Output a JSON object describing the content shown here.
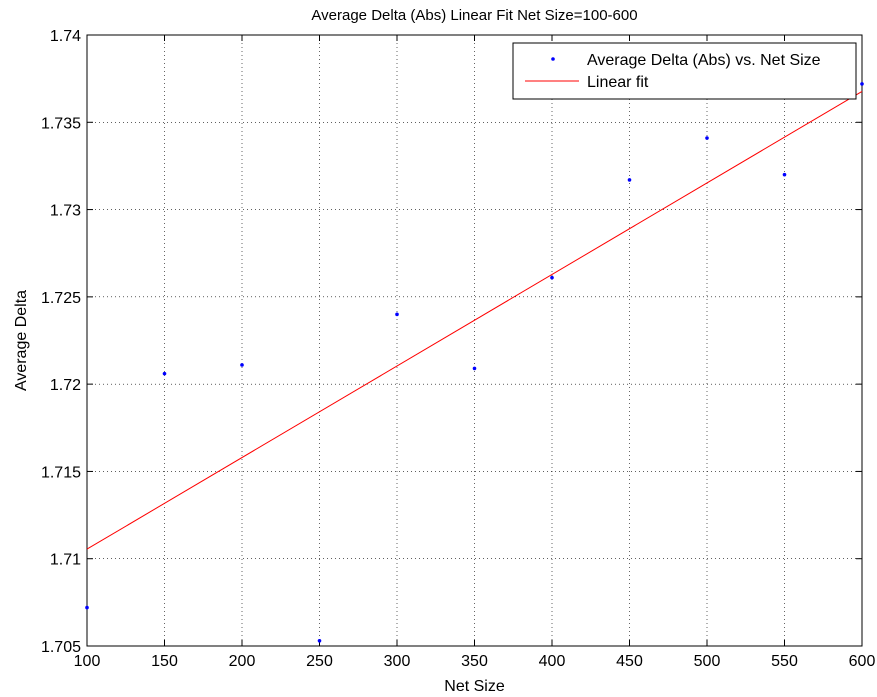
{
  "chart_data": {
    "type": "scatter",
    "title": "Average Delta (Abs) Linear Fit Net Size=100-600",
    "xlabel": "Net Size",
    "ylabel": "Average Delta",
    "xlim": [
      100,
      600
    ],
    "ylim": [
      1.705,
      1.74
    ],
    "x_ticks": [
      100,
      150,
      200,
      250,
      300,
      350,
      400,
      450,
      500,
      550,
      600
    ],
    "y_ticks": [
      1.705,
      1.71,
      1.715,
      1.72,
      1.725,
      1.73,
      1.735,
      1.74
    ],
    "y_tick_labels": [
      "1.705",
      "1.71",
      "1.715",
      "1.72",
      "1.725",
      "1.73",
      "1.735",
      "1.74"
    ],
    "grid": true,
    "legend_position": "top-right",
    "series": [
      {
        "name": "Average Delta (Abs) vs. Net Size",
        "kind": "points",
        "color": "#0000ff",
        "x": [
          100,
          150,
          200,
          250,
          300,
          350,
          400,
          450,
          500,
          550,
          600
        ],
        "y": [
          1.7072,
          1.7206,
          1.7211,
          1.7053,
          1.724,
          1.7209,
          1.7261,
          1.7317,
          1.7341,
          1.732,
          1.7372
        ]
      },
      {
        "name": "Linear fit",
        "kind": "line",
        "color": "#ff0000",
        "x": [
          100,
          600
        ],
        "y": [
          1.71055,
          1.73677
        ]
      }
    ]
  }
}
